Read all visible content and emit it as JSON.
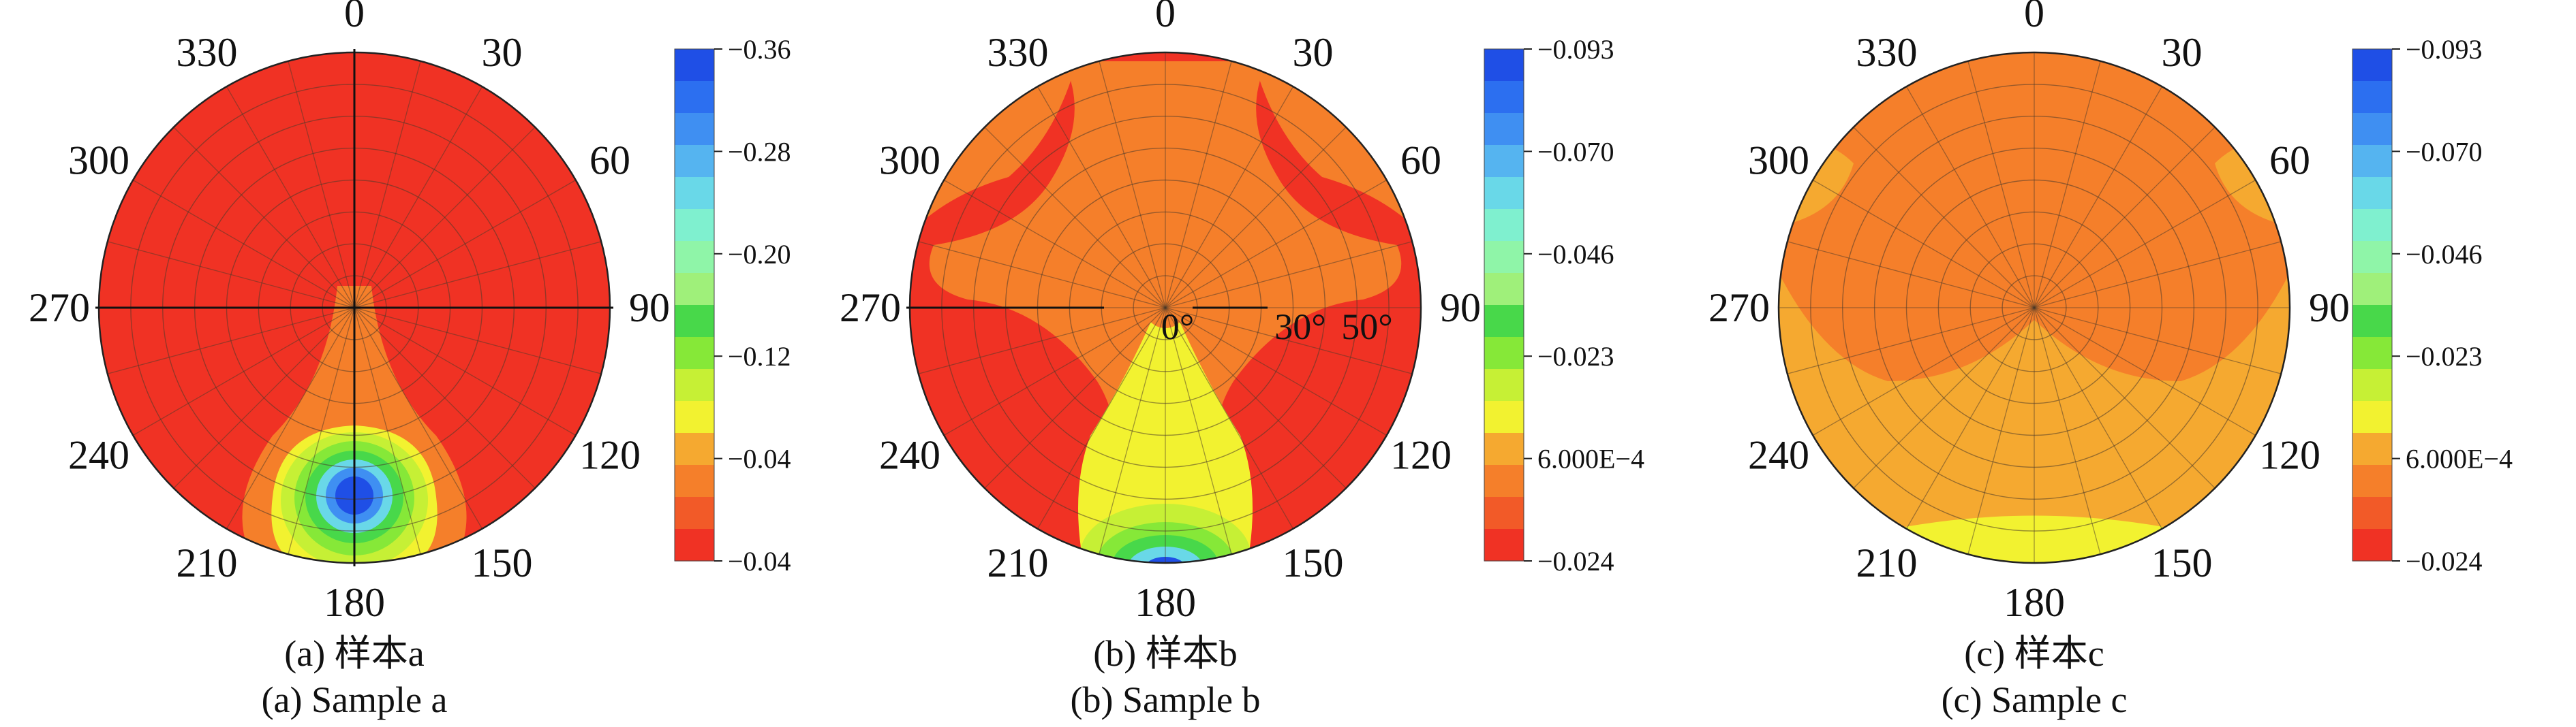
{
  "figure": {
    "panels": [
      {
        "caption_cn": "(a) 样本a",
        "caption_en": "(a) Sample a",
        "colorbar": {
          "tick_labels": [
            "−0.36",
            "−0.28",
            "−0.20",
            "−0.12",
            "−0.04",
            "−0.04"
          ],
          "colors": [
            "#1f4fe6",
            "#2c6ff0",
            "#3f8ff2",
            "#55b4f0",
            "#69d8e8",
            "#7ff0cf",
            "#8ff5a8",
            "#9ff07a",
            "#48d84a",
            "#86e838",
            "#c6f035",
            "#f2f230",
            "#f5a930",
            "#f57f2a",
            "#f25a28",
            "#f03224"
          ]
        },
        "ring_labels": []
      },
      {
        "caption_cn": "(b) 样本b",
        "caption_en": "(b) Sample b",
        "colorbar": {
          "tick_labels": [
            "−0.093",
            "−0.070",
            "−0.046",
            "−0.023",
            "6.000E−4",
            "−0.024"
          ],
          "colors": [
            "#1f4fe6",
            "#2c6ff0",
            "#3f8ff2",
            "#55b4f0",
            "#69d8e8",
            "#7ff0cf",
            "#8ff5a8",
            "#9ff07a",
            "#48d84a",
            "#86e838",
            "#c6f035",
            "#f2f230",
            "#f5a930",
            "#f57f2a",
            "#f25a28",
            "#f03224"
          ]
        },
        "ring_labels": [
          "0°",
          "30°",
          "50°"
        ]
      },
      {
        "caption_cn": "(c) 样本c",
        "caption_en": "(c) Sample c",
        "colorbar": {
          "tick_labels": [
            "−0.093",
            "−0.070",
            "−0.046",
            "−0.023",
            "6.000E−4",
            "−0.024"
          ],
          "colors": [
            "#1f4fe6",
            "#2c6ff0",
            "#3f8ff2",
            "#55b4f0",
            "#69d8e8",
            "#7ff0cf",
            "#8ff5a8",
            "#9ff07a",
            "#48d84a",
            "#86e838",
            "#c6f035",
            "#f2f230",
            "#f5a930",
            "#f57f2a",
            "#f25a28",
            "#f03224"
          ]
        },
        "ring_labels": []
      }
    ]
  },
  "chart_data": [
    {
      "type": "heatmap",
      "subtype": "polar-contour",
      "title": "(a) 样本a",
      "subtitle": "(a) Sample a",
      "angle_ticks": [
        "0",
        "30",
        "60",
        "90",
        "120",
        "150",
        "180",
        "210",
        "240",
        "270",
        "300",
        "330"
      ],
      "colorbar_ticks": [
        "−0.36",
        "−0.28",
        "−0.20",
        "−0.12",
        "−0.04",
        "−0.04"
      ],
      "grid": true,
      "regions": [
        {
          "level": "red (≈ −0.04)",
          "location": "most of disk"
        },
        {
          "level": "orange",
          "location": "plume from center toward 180"
        },
        {
          "level": "yellow-green to blue (≈ −0.36)",
          "location": "spot near 180, inner-outer rings"
        }
      ]
    },
    {
      "type": "heatmap",
      "subtype": "polar-contour",
      "title": "(b) 样本b",
      "subtitle": "(b) Sample b",
      "angle_ticks": [
        "0",
        "30",
        "60",
        "90",
        "120",
        "150",
        "180",
        "210",
        "240",
        "270",
        "300",
        "330"
      ],
      "ring_ticks": [
        "0°",
        "30°",
        "50°"
      ],
      "colorbar_ticks": [
        "−0.093",
        "−0.070",
        "−0.046",
        "−0.023",
        "6.000E−4",
        "−0.024"
      ],
      "grid": true,
      "regions": [
        {
          "level": "red",
          "location": "outer sides and lower flanks"
        },
        {
          "level": "orange",
          "location": "upper center and lobes"
        },
        {
          "level": "yellow to blue (≈ −0.093)",
          "location": "band toward 180 edge"
        }
      ]
    },
    {
      "type": "heatmap",
      "subtype": "polar-contour",
      "title": "(c) 样本c",
      "subtitle": "(c) Sample c",
      "angle_ticks": [
        "0",
        "30",
        "60",
        "90",
        "120",
        "150",
        "180",
        "210",
        "240",
        "270",
        "300",
        "330"
      ],
      "colorbar_ticks": [
        "−0.093",
        "−0.070",
        "−0.046",
        "−0.023",
        "6.000E−4",
        "−0.024"
      ],
      "grid": true,
      "regions": [
        {
          "level": "orange-red",
          "location": "upper disk"
        },
        {
          "level": "light orange",
          "location": "lower disk and patches at 300 / 60"
        },
        {
          "level": "yellow",
          "location": "thin band at 180 edge"
        }
      ]
    }
  ]
}
